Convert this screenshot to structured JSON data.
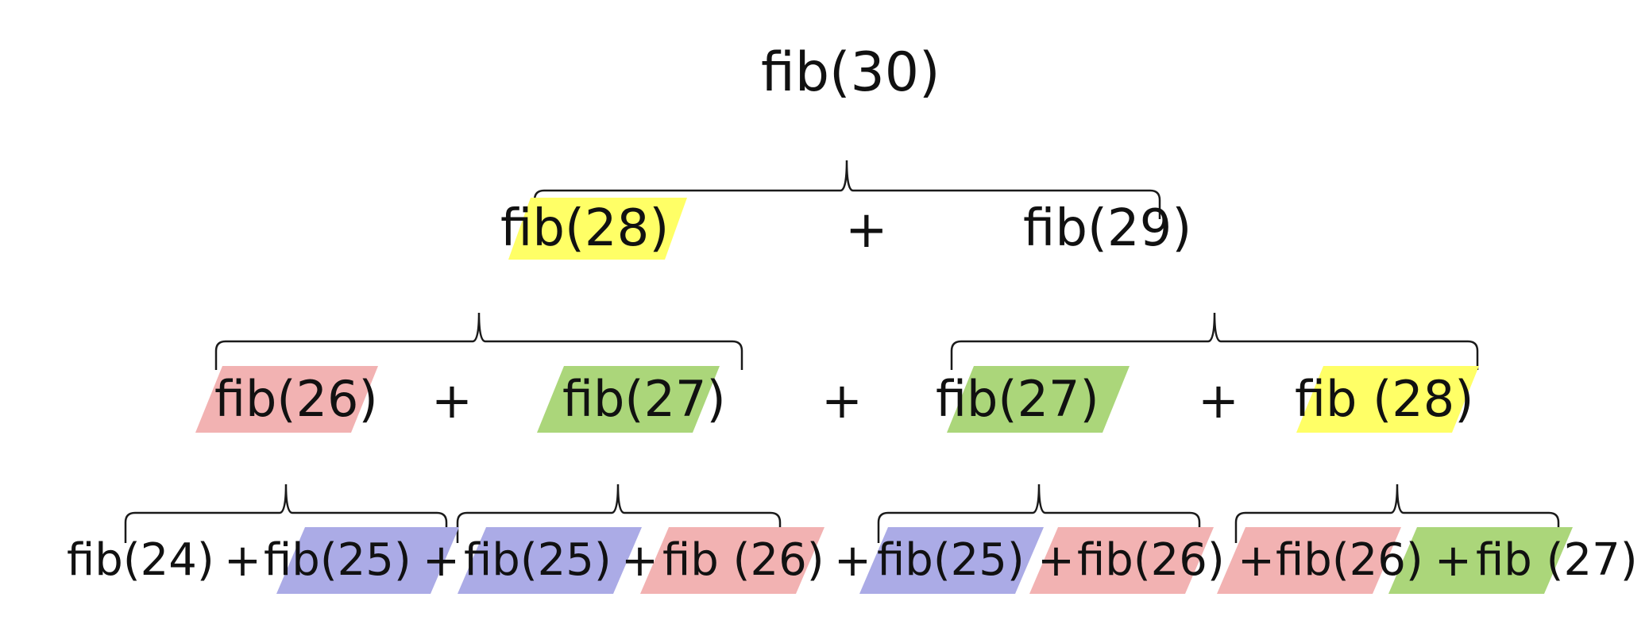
{
  "colors": {
    "yellow": "#ffff66",
    "red": "#f2b2b2",
    "green": "#abd67a",
    "blue": "#ababe6",
    "line": "#1a1a1a",
    "text": "#111111"
  },
  "tree": {
    "root": "fib(30)",
    "level1": [
      {
        "label": "fib(28)",
        "color": "yellow"
      },
      {
        "label": "fib(29)",
        "color": null
      }
    ],
    "level2": [
      {
        "label": "fib(26)",
        "color": "red"
      },
      {
        "label": "fib(27)",
        "color": "green"
      },
      {
        "label": "fib(27)",
        "color": "green"
      },
      {
        "label": "fib (28)",
        "color": "yellow"
      }
    ],
    "level3": [
      {
        "label": "fib(24)",
        "color": null
      },
      {
        "label": "fib(25)",
        "color": "blue"
      },
      {
        "label": "fib(25)",
        "color": "blue"
      },
      {
        "label": "fib (26)",
        "color": "red"
      },
      {
        "label": "fib(25)",
        "color": "blue"
      },
      {
        "label": "fib(26)",
        "color": "red"
      },
      {
        "label": "fib(26)",
        "color": "red"
      },
      {
        "label": "fib (27)",
        "color": "green"
      }
    ],
    "operator": "+"
  }
}
